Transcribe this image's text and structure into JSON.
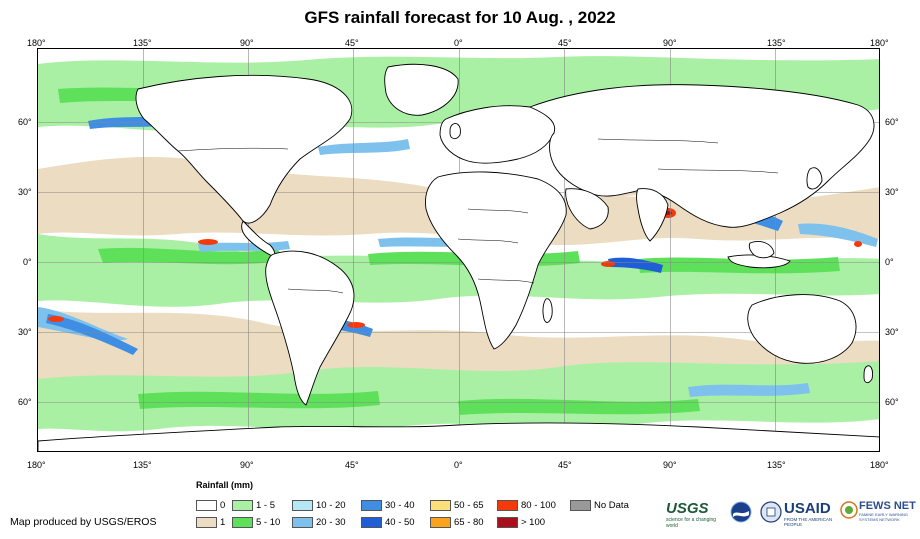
{
  "title": "GFS rainfall forecast for 10 Aug. , 2022",
  "axes": {
    "lon_ticks": [
      "180°",
      "135°",
      "90°",
      "45°",
      "0°",
      "45°",
      "90°",
      "135°",
      "180°"
    ],
    "lat_ticks": [
      "60°",
      "30°",
      "0°",
      "30°",
      "60°"
    ]
  },
  "legend": {
    "title": "Rainfall (mm)",
    "items": [
      {
        "label": "0",
        "color": "#ffffff"
      },
      {
        "label": "1",
        "color": "#ecdcc2"
      },
      {
        "label": "1 - 5",
        "color": "#a9f0a4"
      },
      {
        "label": "5 - 10",
        "color": "#5fe05a"
      },
      {
        "label": "10 - 20",
        "color": "#b5e7f4"
      },
      {
        "label": "20 - 30",
        "color": "#7ec1ed"
      },
      {
        "label": "30 - 40",
        "color": "#3f8ee3"
      },
      {
        "label": "40 - 50",
        "color": "#1f5ed6"
      },
      {
        "label": "50 - 65",
        "color": "#fde07a"
      },
      {
        "label": "65 - 80",
        "color": "#fba31c"
      },
      {
        "label": "80 - 100",
        "color": "#f43a0a"
      },
      {
        "label": "> 100",
        "color": "#a8111b"
      },
      {
        "label": "No Data",
        "color": "#999999"
      }
    ]
  },
  "credit": "Map produced by USGS/EROS",
  "logos": {
    "usgs": {
      "text": "USGS",
      "tagline": "science for a changing world"
    },
    "noaa": {
      "text": "NOAA"
    },
    "usaid": {
      "text": "USAID",
      "tagline": "FROM THE AMERICAN PEOPLE"
    },
    "fewsnet": {
      "text": "FEWS NET",
      "tagline": "FAMINE EARLY WARNING SYSTEMS NETWORK"
    }
  }
}
